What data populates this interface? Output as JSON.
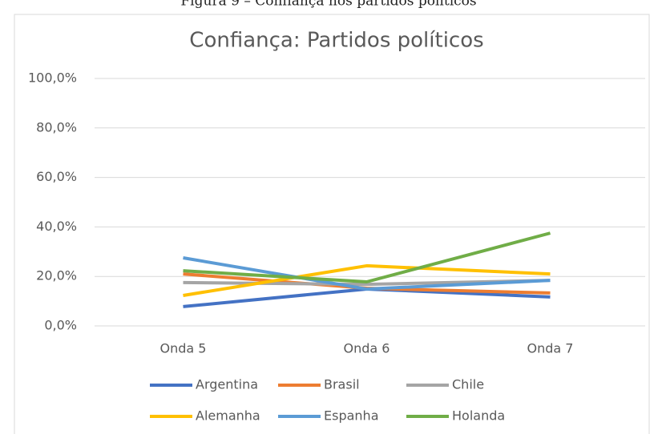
{
  "caption": "Figura 9 – Confiança nos partidos políticos",
  "chart_data": {
    "type": "line",
    "title": "Confiança: Partidos políticos",
    "categories": [
      "Onda 5",
      "Onda 6",
      "Onda 7"
    ],
    "series": [
      {
        "name": "Argentina",
        "color": "#4472c4",
        "values": [
          7.8,
          14.9,
          11.7
        ]
      },
      {
        "name": "Brasil",
        "color": "#ed7d31",
        "values": [
          21,
          15.2,
          13.3
        ]
      },
      {
        "name": "Chile",
        "color": "#a5a5a5",
        "values": [
          17.5,
          16.8,
          18.4
        ]
      },
      {
        "name": "Alemanha",
        "color": "#ffc000",
        "values": [
          12.3,
          24.3,
          21
        ]
      },
      {
        "name": "Espanha",
        "color": "#5b9bd5",
        "values": [
          27.5,
          14.9,
          18.4
        ]
      },
      {
        "name": "Holanda",
        "color": "#70ad47",
        "values": [
          22.3,
          17.8,
          37.5
        ]
      }
    ],
    "ylim": [
      0,
      100
    ],
    "yticks": [
      {
        "value": 0,
        "label": "0,0%"
      },
      {
        "value": 20,
        "label": "20,0%"
      },
      {
        "value": 40,
        "label": "40,0%"
      },
      {
        "value": 60,
        "label": "60,0%"
      },
      {
        "value": 80,
        "label": "80,0%"
      },
      {
        "value": 100,
        "label": "100,0%"
      }
    ],
    "grid": true,
    "legend": "bottom"
  }
}
